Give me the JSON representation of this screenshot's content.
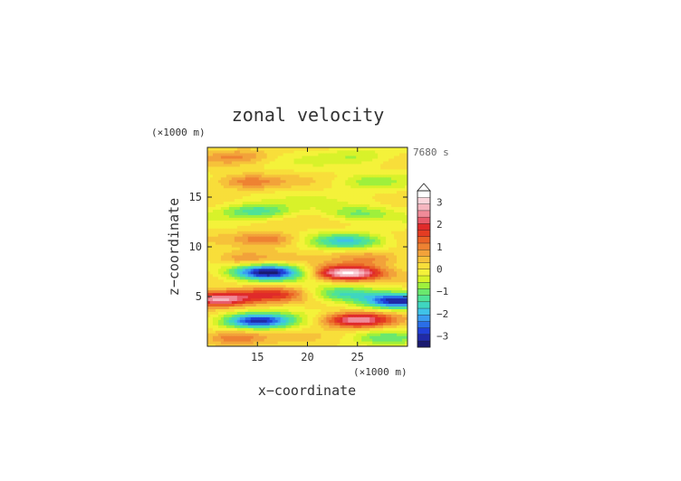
{
  "chart_data": {
    "type": "heatmap",
    "title": "zonal velocity",
    "xlabel": "x−coordinate",
    "ylabel": "z−coordinate",
    "x_unit": "(×1000 m)",
    "y_unit": "(×1000 m)",
    "time_label": "7680 s",
    "xlim": [
      10,
      30
    ],
    "ylim": [
      0,
      20
    ],
    "x_ticks": [
      15,
      20,
      25
    ],
    "y_ticks": [
      5,
      10,
      15
    ],
    "x_tick_labels": [
      "15",
      "20",
      "25"
    ],
    "y_tick_labels": [
      "5",
      "10",
      "15"
    ],
    "colorbar": {
      "min": -3.5,
      "max": 3.5,
      "step": 0.25,
      "ticks": [
        3,
        2,
        1,
        0,
        -1,
        -2,
        -3
      ],
      "tick_labels": [
        "3",
        "2",
        "1",
        "0",
        "−1",
        "−2",
        "−3"
      ],
      "colors": [
        "#1a1a70",
        "#202aa8",
        "#2140d8",
        "#2a6ee8",
        "#3a9cf0",
        "#3fc2e8",
        "#3fd6c0",
        "#4fe298",
        "#6ae86e",
        "#9ef03c",
        "#d8f22a",
        "#f4f23a",
        "#f8de3a",
        "#f6c23a",
        "#f2a23a",
        "#ee8232",
        "#ea6226",
        "#e43c22",
        "#e02a2a",
        "#e85a6a",
        "#f08a98",
        "#f6b6c0",
        "#fbd6dc",
        "#ffffff"
      ]
    },
    "grid": false,
    "field_structures": [
      {
        "x": 16,
        "z": 7.5,
        "value": -3.4
      },
      {
        "x": 24,
        "z": 7.4,
        "value": 3.4
      },
      {
        "x": 11,
        "z": 4.8,
        "value": 2.9
      },
      {
        "x": 29,
        "z": 4.6,
        "value": -3.0
      },
      {
        "x": 15,
        "z": 2.6,
        "value": -3.0
      },
      {
        "x": 25,
        "z": 2.7,
        "value": 2.8
      },
      {
        "x": 16.5,
        "z": 5.3,
        "value": 1.6
      },
      {
        "x": 23.5,
        "z": 5.3,
        "value": -1.6
      },
      {
        "x": 16,
        "z": 10.8,
        "value": 1.3
      },
      {
        "x": 24,
        "z": 10.6,
        "value": -1.7
      },
      {
        "x": 15,
        "z": 13.6,
        "value": -1.4
      },
      {
        "x": 25,
        "z": 13.4,
        "value": -1.0
      },
      {
        "x": 14,
        "z": 16.6,
        "value": 1.0
      },
      {
        "x": 26,
        "z": 16.6,
        "value": -0.8
      },
      {
        "x": 13,
        "z": 19.1,
        "value": 0.9
      },
      {
        "x": 25,
        "z": 19.2,
        "value": -0.5
      },
      {
        "x": 12.5,
        "z": 0.9,
        "value": 1.2
      },
      {
        "x": 27.5,
        "z": 0.9,
        "value": -1.0
      },
      {
        "x": 13.5,
        "z": 8.9,
        "value": 0.8
      },
      {
        "x": 26.5,
        "z": 8.9,
        "value": 0.9
      }
    ]
  }
}
